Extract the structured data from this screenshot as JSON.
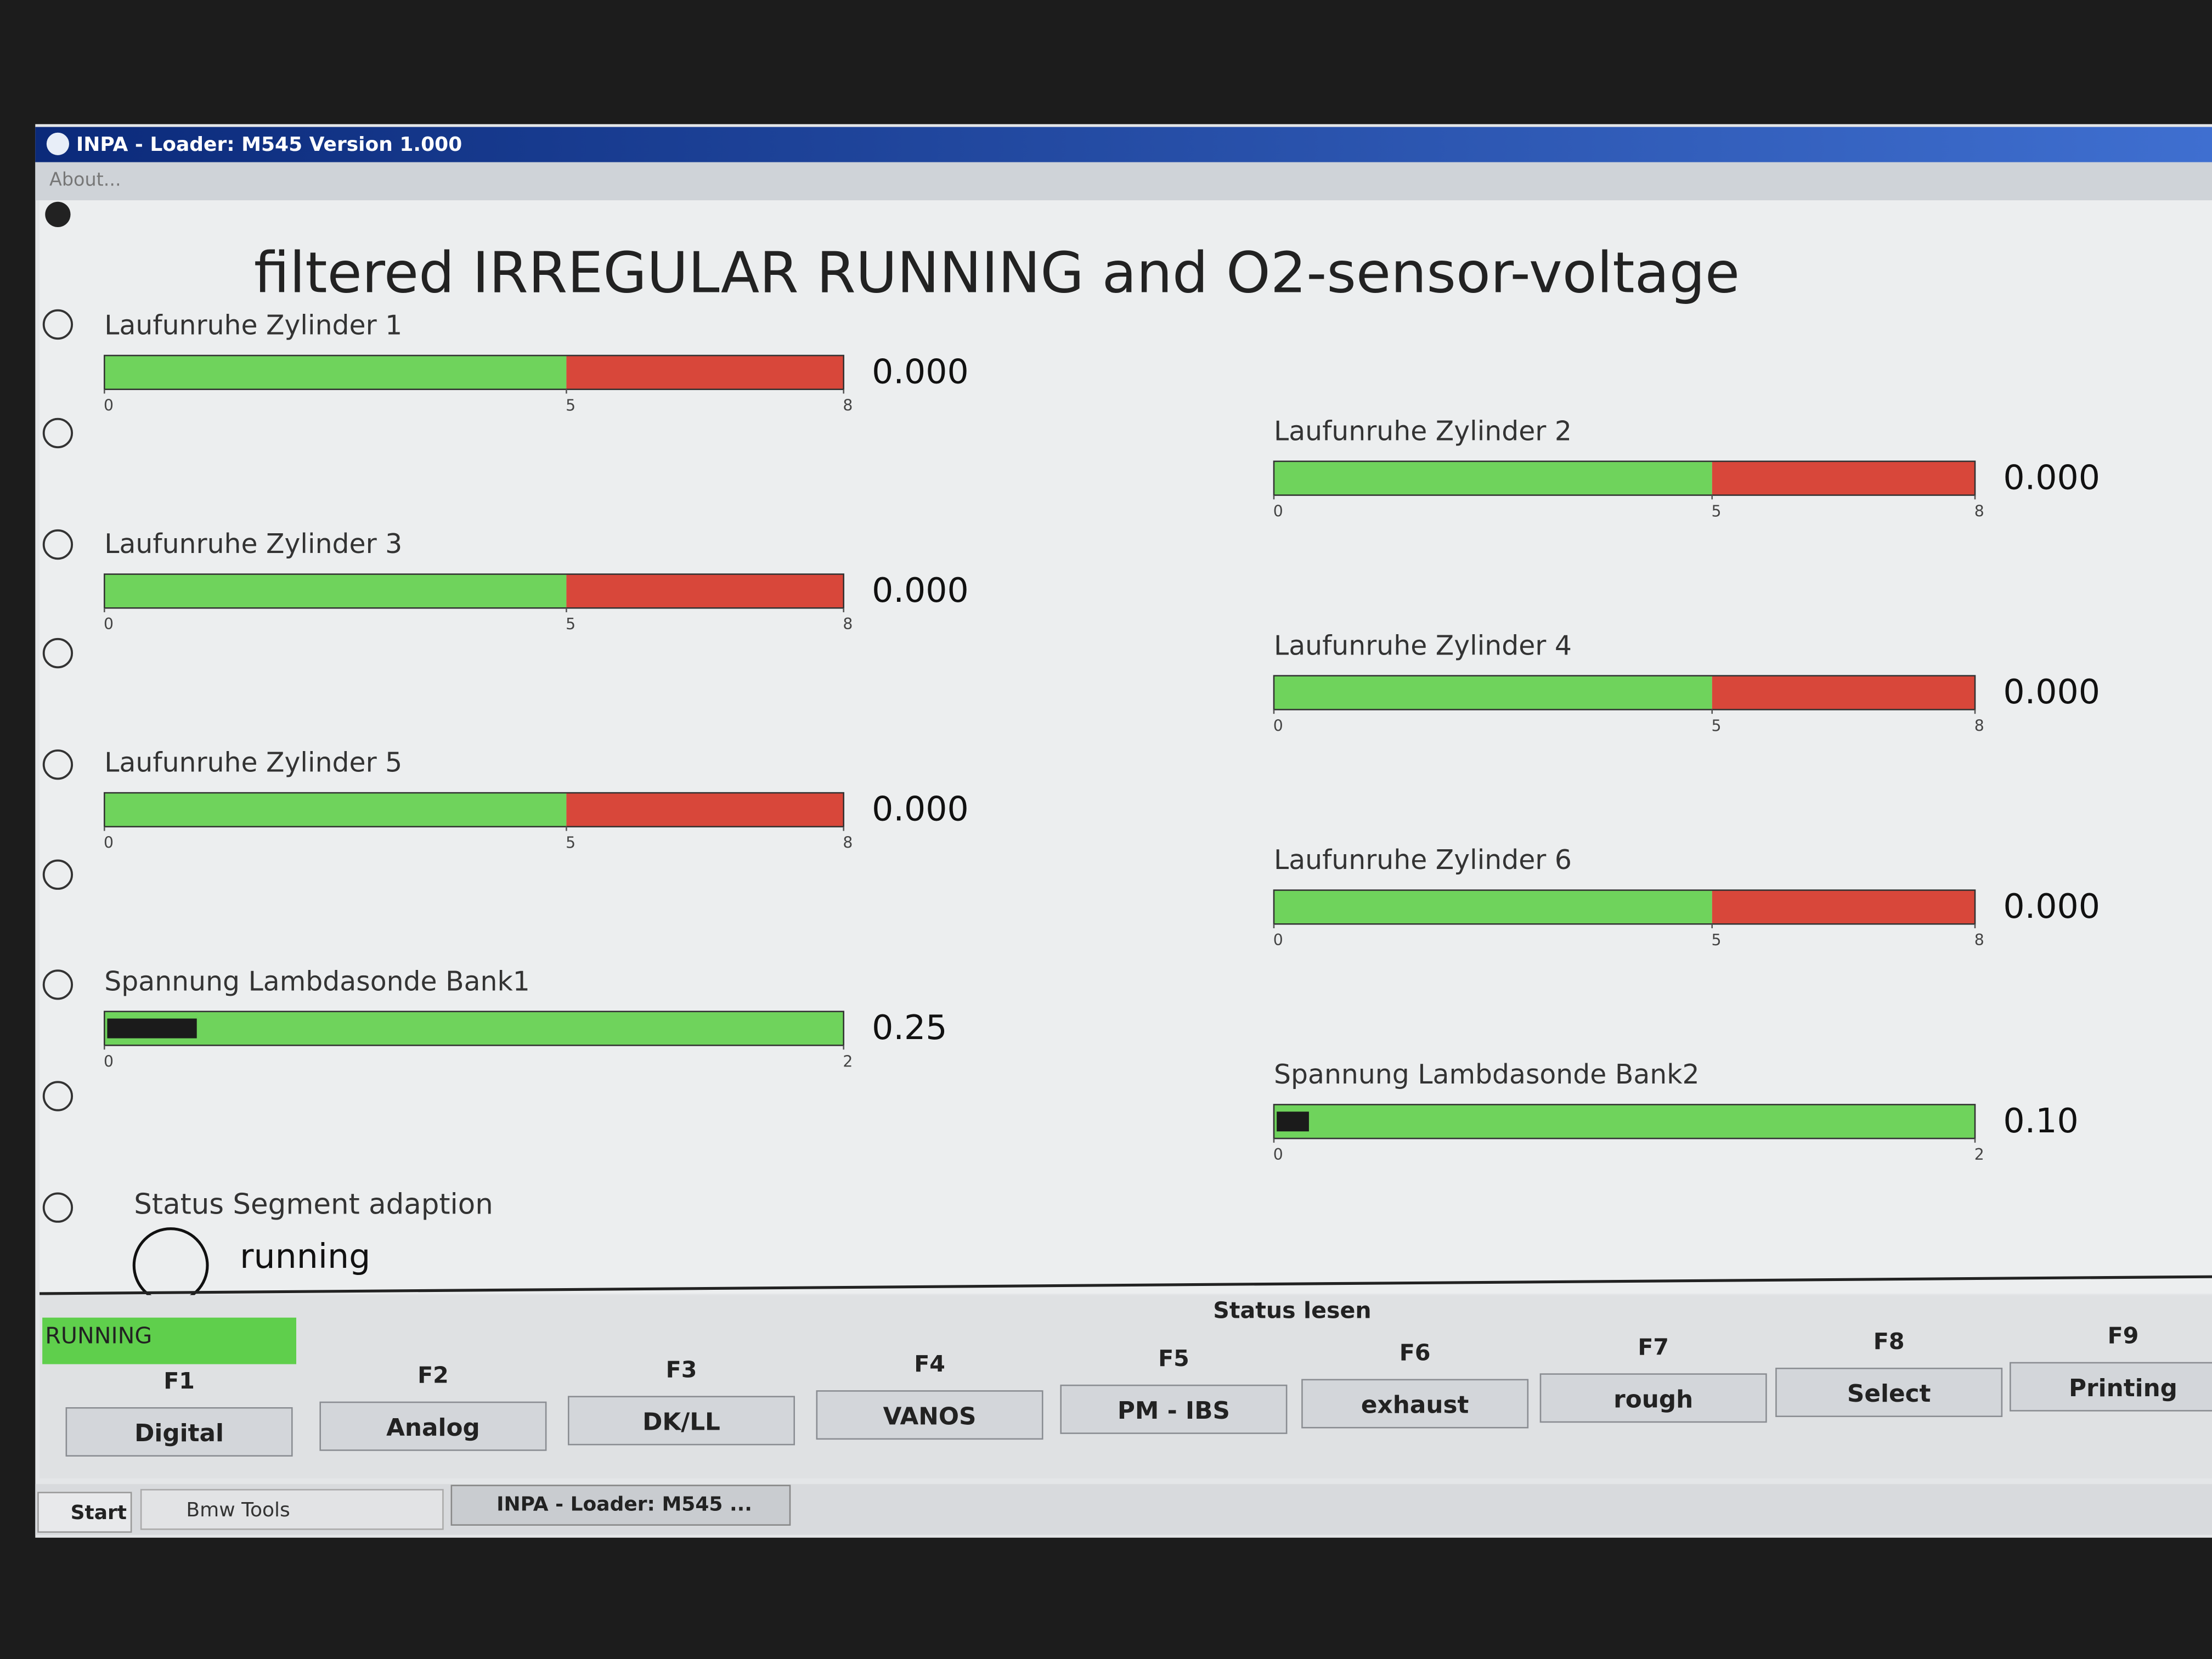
{
  "window": {
    "title": "INPA - Loader: M545 Version 1.000",
    "menu": [
      "About..."
    ]
  },
  "screen": {
    "heading": "filtered IRREGULAR RUNNING and O2-sensor-voltage",
    "gauges": [
      {
        "label": "Laufunruhe Zylinder 1",
        "value": 0,
        "value_label": "0.000",
        "ticks": [
          0,
          5,
          8
        ],
        "zones": [
          {
            "from": 0,
            "to": 5,
            "color": "#6fd35c"
          },
          {
            "from": 5,
            "to": 8,
            "color": "#d8473a"
          }
        ],
        "value_color": "#1b1b1b"
      },
      {
        "label": "Laufunruhe Zylinder 2",
        "value": 0,
        "value_label": "0.000",
        "ticks": [
          0,
          5,
          8
        ],
        "zones": [
          {
            "from": 0,
            "to": 5,
            "color": "#6fd35c"
          },
          {
            "from": 5,
            "to": 8,
            "color": "#d8473a"
          }
        ],
        "value_color": "#1b1b1b"
      },
      {
        "label": "Laufunruhe Zylinder 3",
        "value": 0,
        "value_label": "0.000",
        "ticks": [
          0,
          5,
          8
        ],
        "zones": [
          {
            "from": 0,
            "to": 5,
            "color": "#6fd35c"
          },
          {
            "from": 5,
            "to": 8,
            "color": "#d8473a"
          }
        ],
        "value_color": "#1b1b1b"
      },
      {
        "label": "Laufunruhe Zylinder 4",
        "value": 0,
        "value_label": "0.000",
        "ticks": [
          0,
          5,
          8
        ],
        "zones": [
          {
            "from": 0,
            "to": 5,
            "color": "#6fd35c"
          },
          {
            "from": 5,
            "to": 8,
            "color": "#d8473a"
          }
        ],
        "value_color": "#1b1b1b"
      },
      {
        "label": "Laufunruhe Zylinder 5",
        "value": 0,
        "value_label": "0.000",
        "ticks": [
          0,
          5,
          8
        ],
        "zones": [
          {
            "from": 0,
            "to": 5,
            "color": "#6fd35c"
          },
          {
            "from": 5,
            "to": 8,
            "color": "#d8473a"
          }
        ],
        "value_color": "#1b1b1b"
      },
      {
        "label": "Laufunruhe Zylinder 6",
        "value": 0,
        "value_label": "0.000",
        "ticks": [
          0,
          5,
          8
        ],
        "zones": [
          {
            "from": 0,
            "to": 5,
            "color": "#6fd35c"
          },
          {
            "from": 5,
            "to": 8,
            "color": "#d8473a"
          }
        ],
        "value_color": "#1b1b1b"
      },
      {
        "label": "Spannung Lambdasonde Bank1",
        "value": 0.25,
        "value_label": "0.25",
        "ticks": [
          0,
          2
        ],
        "zones": [
          {
            "from": 0,
            "to": 2,
            "color": "#6fd35c"
          }
        ],
        "value_color": "#1b1b1b"
      },
      {
        "label": "Spannung Lambdasonde Bank2",
        "value": 0.1,
        "value_label": "0.10",
        "ticks": [
          0,
          2
        ],
        "zones": [
          {
            "from": 0,
            "to": 2,
            "color": "#6fd35c"
          }
        ],
        "value_color": "#1b1b1b"
      }
    ],
    "status": {
      "label": "Status Segment adaption",
      "value": "running"
    }
  },
  "statusbar": {
    "state": "RUNNING",
    "group": "Status lesen"
  },
  "function_keys": [
    {
      "key": "F1",
      "label": "Digital"
    },
    {
      "key": "F2",
      "label": "Analog"
    },
    {
      "key": "F3",
      "label": "DK/LL"
    },
    {
      "key": "F4",
      "label": "VANOS"
    },
    {
      "key": "F5",
      "label": "PM - IBS"
    },
    {
      "key": "F6",
      "label": "exhaust"
    },
    {
      "key": "F7",
      "label": "rough"
    },
    {
      "key": "F8",
      "label": "Select"
    },
    {
      "key": "F9",
      "label": "Printing"
    }
  ],
  "taskbar": {
    "start": "Start",
    "items": [
      "Bmw Tools",
      "INPA - Loader: M545 ..."
    ]
  }
}
